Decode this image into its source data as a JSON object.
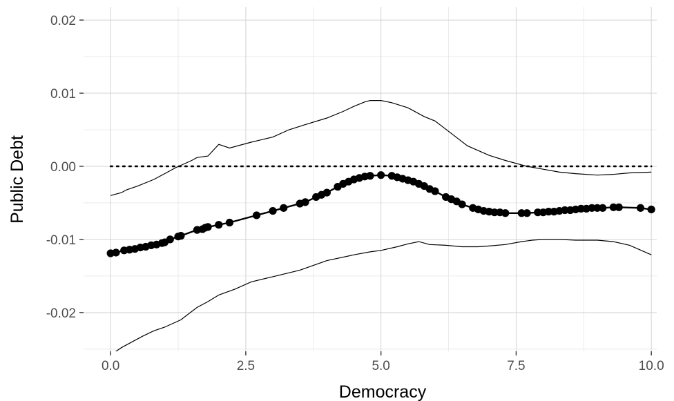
{
  "chart_data": {
    "type": "line",
    "title": "",
    "xlabel": "Democracy",
    "ylabel": "Public Debt",
    "xlim": [
      -0.5,
      10.1
    ],
    "ylim": [
      -0.0253,
      0.0218
    ],
    "x_ticks": [
      0.0,
      2.5,
      5.0,
      7.5,
      10.0
    ],
    "x_tick_labels": [
      "0.0",
      "2.5",
      "5.0",
      "7.5",
      "10.0"
    ],
    "y_ticks": [
      -0.02,
      -0.01,
      0.0,
      0.01,
      0.02
    ],
    "y_tick_labels": [
      "-0.02",
      "-0.01",
      "0.00",
      "0.01",
      "0.02"
    ],
    "grid": true,
    "reference_line": {
      "y": 0.0,
      "style": "dotted"
    },
    "series": [
      {
        "role": "estimate",
        "style": "thick line with points",
        "x": [
          0.0,
          0.1,
          0.25,
          0.35,
          0.45,
          0.55,
          0.65,
          0.75,
          0.85,
          0.95,
          1.0,
          1.1,
          1.25,
          1.3,
          1.6,
          1.7,
          1.75,
          1.8,
          2.0,
          2.2,
          2.7,
          3.0,
          3.2,
          3.5,
          3.6,
          3.8,
          3.9,
          4.0,
          4.2,
          4.3,
          4.4,
          4.5,
          4.6,
          4.7,
          4.8,
          5.0,
          5.2,
          5.3,
          5.4,
          5.5,
          5.6,
          5.7,
          5.8,
          5.9,
          6.0,
          6.2,
          6.3,
          6.4,
          6.5,
          6.7,
          6.8,
          6.9,
          7.0,
          7.1,
          7.2,
          7.3,
          7.6,
          7.7,
          7.9,
          8.0,
          8.1,
          8.2,
          8.3,
          8.4,
          8.5,
          8.6,
          8.7,
          8.8,
          8.9,
          9.0,
          9.1,
          9.3,
          9.4,
          9.8,
          10.0
        ],
        "y": [
          -0.0119,
          -0.0118,
          -0.0115,
          -0.0114,
          -0.0113,
          -0.0111,
          -0.011,
          -0.0108,
          -0.0107,
          -0.0105,
          -0.0104,
          -0.01,
          -0.0096,
          -0.0095,
          -0.0087,
          -0.0086,
          -0.0084,
          -0.0083,
          -0.008,
          -0.0077,
          -0.0067,
          -0.0061,
          -0.0057,
          -0.0051,
          -0.0049,
          -0.0042,
          -0.0039,
          -0.0036,
          -0.0028,
          -0.0024,
          -0.0021,
          -0.0018,
          -0.0016,
          -0.0014,
          -0.0013,
          -0.0012,
          -0.0013,
          -0.0015,
          -0.0017,
          -0.0019,
          -0.0021,
          -0.0024,
          -0.0027,
          -0.0031,
          -0.0034,
          -0.0042,
          -0.0045,
          -0.0048,
          -0.0052,
          -0.0057,
          -0.0059,
          -0.0061,
          -0.0062,
          -0.0063,
          -0.0063,
          -0.0064,
          -0.0064,
          -0.0064,
          -0.0063,
          -0.0063,
          -0.0062,
          -0.0062,
          -0.0061,
          -0.006,
          -0.006,
          -0.0059,
          -0.0058,
          -0.0058,
          -0.0057,
          -0.0057,
          -0.0057,
          -0.0056,
          -0.0056,
          -0.0057,
          -0.0059
        ]
      },
      {
        "role": "upper-bound",
        "style": "thin line",
        "x": [
          0.0,
          0.2,
          0.3,
          0.5,
          0.8,
          1.0,
          1.2,
          1.5,
          1.6,
          1.8,
          2.0,
          2.2,
          2.6,
          3.0,
          3.3,
          3.6,
          4.0,
          4.3,
          4.5,
          4.7,
          4.8,
          5.0,
          5.2,
          5.5,
          5.8,
          6.0,
          6.3,
          6.6,
          7.0,
          7.3,
          7.7,
          8.0,
          8.3,
          8.6,
          9.0,
          9.3,
          9.6,
          10.0
        ],
        "y": [
          -0.004,
          -0.0036,
          -0.0032,
          -0.0027,
          -0.0018,
          -0.001,
          -0.0002,
          0.0008,
          0.0012,
          0.0014,
          0.003,
          0.0025,
          0.0033,
          0.004,
          0.005,
          0.0057,
          0.0066,
          0.0075,
          0.0082,
          0.0088,
          0.009,
          0.009,
          0.0087,
          0.008,
          0.0068,
          0.0062,
          0.0045,
          0.0028,
          0.0015,
          0.0008,
          0.0,
          -0.0004,
          -0.0008,
          -0.001,
          -0.0012,
          -0.0011,
          -0.0009,
          -0.0008
        ]
      },
      {
        "role": "lower-bound",
        "style": "thin line",
        "x": [
          0.0,
          0.2,
          0.4,
          0.6,
          0.8,
          1.0,
          1.3,
          1.6,
          1.8,
          2.0,
          2.3,
          2.6,
          3.0,
          3.5,
          4.0,
          4.5,
          4.8,
          5.0,
          5.3,
          5.5,
          5.7,
          5.9,
          6.2,
          6.5,
          6.8,
          7.0,
          7.3,
          7.6,
          7.8,
          8.0,
          8.3,
          8.6,
          9.0,
          9.3,
          9.6,
          10.0
        ],
        "y": [
          -0.0258,
          -0.0248,
          -0.024,
          -0.0232,
          -0.0225,
          -0.022,
          -0.021,
          -0.0193,
          -0.0185,
          -0.0176,
          -0.0168,
          -0.0158,
          -0.0151,
          -0.0142,
          -0.0129,
          -0.0121,
          -0.0117,
          -0.0115,
          -0.011,
          -0.0106,
          -0.0103,
          -0.0107,
          -0.0108,
          -0.011,
          -0.011,
          -0.0109,
          -0.0107,
          -0.0103,
          -0.0101,
          -0.01,
          -0.01,
          -0.0101,
          -0.0101,
          -0.0103,
          -0.0108,
          -0.0121
        ]
      }
    ]
  }
}
